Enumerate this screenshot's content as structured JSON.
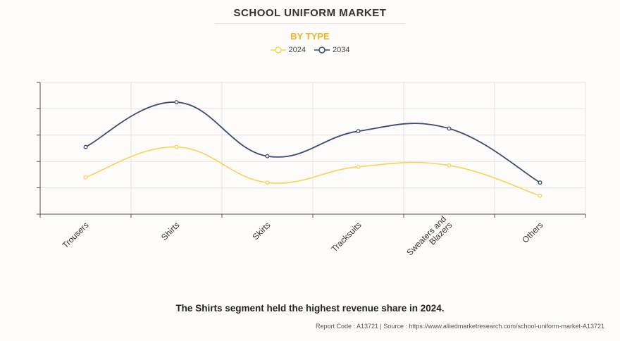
{
  "header": {
    "title": "SCHOOL UNIFORM MARKET",
    "subtitle": "BY TYPE"
  },
  "colors": {
    "series_2024": "#f8d454",
    "series_2034": "#3c4b70",
    "subtitle": "#f2b51c",
    "grid": "#e4e4e4"
  },
  "chart_data": {
    "type": "line",
    "title": "SCHOOL UNIFORM MARKET",
    "subtitle": "BY TYPE",
    "categories": [
      "Trousers",
      "Shirts",
      "Skirts",
      "Tracksuits",
      "Sweaters and Blazers",
      "Others"
    ],
    "category_label_lines": [
      [
        "Trousers"
      ],
      [
        "Shirts"
      ],
      [
        "Skirts"
      ],
      [
        "Tracksuits"
      ],
      [
        "Sweaters and",
        "Blazers"
      ],
      [
        "Others"
      ]
    ],
    "series": [
      {
        "name": "2024",
        "values": [
          1.4,
          2.55,
          1.2,
          1.8,
          1.85,
          0.7
        ]
      },
      {
        "name": "2034",
        "values": [
          2.55,
          4.25,
          2.2,
          3.15,
          3.25,
          1.2
        ]
      }
    ],
    "ylim": [
      0,
      5
    ],
    "y_tick_labels_shown": false,
    "grid": true,
    "legend_position": "top-center",
    "smooth": true
  },
  "footer": {
    "caption": "The Shirts segment held the highest revenue share in 2024.",
    "source": "Report Code : A13721  |  Source : https://www.alliedmarketresearch.com/school-uniform-market-A13721"
  }
}
